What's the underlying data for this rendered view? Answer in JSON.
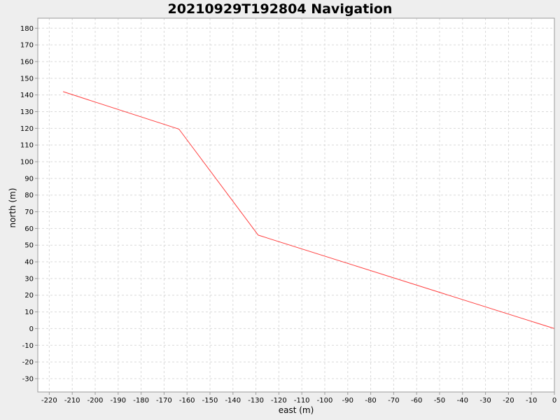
{
  "chart_data": {
    "type": "line",
    "title": "20210929T192804 Navigation",
    "xlabel": "east (m)",
    "ylabel": "north (m)",
    "xlim": [
      -225,
      0
    ],
    "ylim": [
      -38,
      186
    ],
    "x_ticks": [
      -220,
      -210,
      -200,
      -190,
      -180,
      -170,
      -160,
      -150,
      -140,
      -130,
      -120,
      -110,
      -100,
      -90,
      -80,
      -70,
      -60,
      -50,
      -40,
      -30,
      -20,
      -10,
      0
    ],
    "y_ticks": [
      -30,
      -20,
      -10,
      0,
      10,
      20,
      30,
      40,
      50,
      60,
      70,
      80,
      90,
      100,
      110,
      120,
      130,
      140,
      150,
      160,
      170,
      180
    ],
    "grid": true,
    "series": [
      {
        "color": "#ff4040",
        "x": [
          -214,
          -163.5,
          -129,
          0
        ],
        "y": [
          142,
          119.5,
          56,
          0
        ]
      }
    ]
  }
}
